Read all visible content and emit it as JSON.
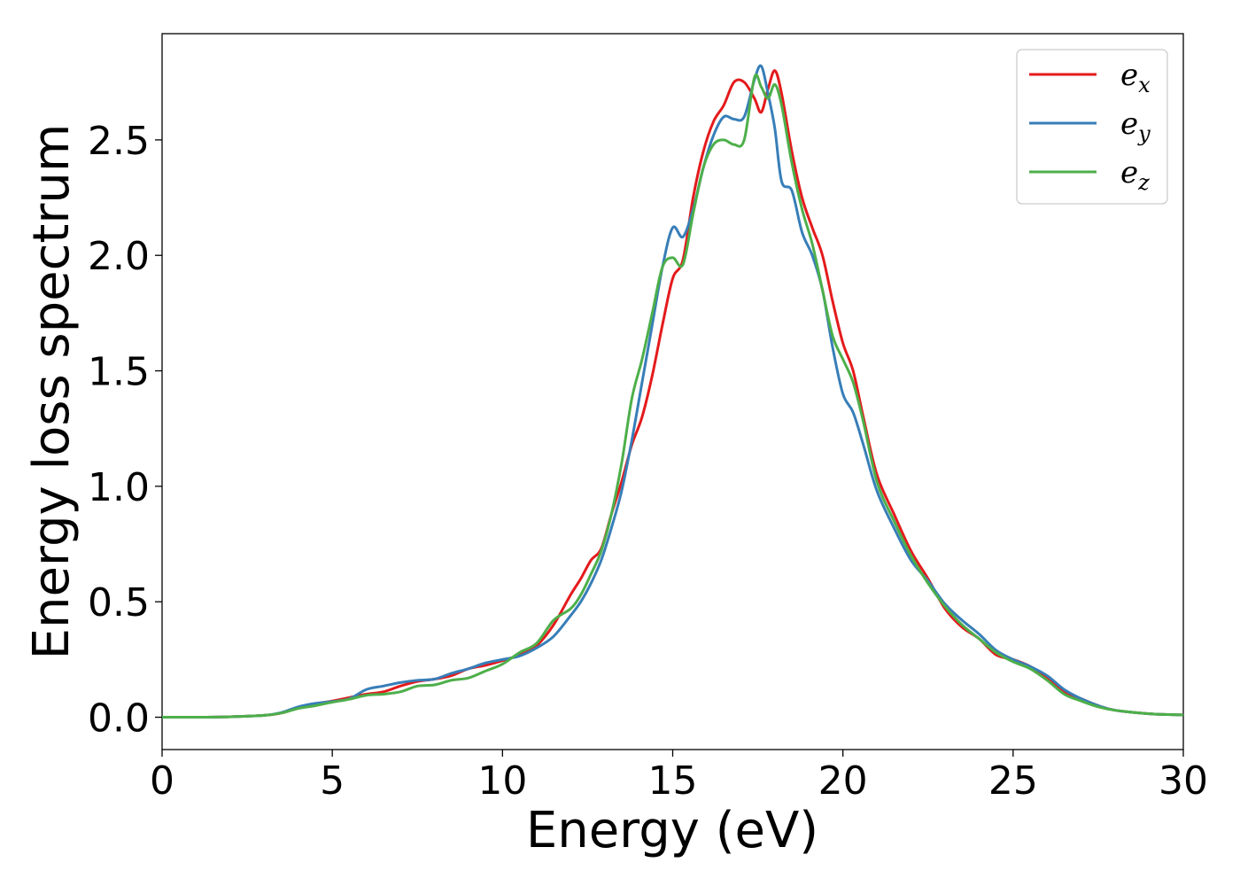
{
  "chart_data": {
    "type": "line",
    "xlabel": "Energy (eV)",
    "ylabel": "Energy loss spectrum",
    "xlim": [
      0,
      30
    ],
    "ylim": [
      -0.14,
      2.96
    ],
    "xticks": [
      0,
      5,
      10,
      15,
      20,
      25,
      30
    ],
    "xtick_labels": [
      "0",
      "5",
      "10",
      "15",
      "20",
      "25",
      "30"
    ],
    "yticks": [
      0.0,
      0.5,
      1.0,
      1.5,
      2.0,
      2.5
    ],
    "ytick_labels": [
      "0.0",
      "0.5",
      "1.0",
      "1.5",
      "2.0",
      "2.5"
    ],
    "grid": false,
    "legend_position": "upper-right",
    "series": [
      {
        "name": "e",
        "subscript": "x",
        "color": "#e41a1c",
        "x": [
          0,
          1,
          2,
          3,
          3.5,
          4,
          4.5,
          5,
          5.5,
          6,
          6.5,
          7,
          7.5,
          8,
          8.5,
          9,
          9.5,
          10,
          10.5,
          11,
          11.5,
          12,
          12.3,
          12.6,
          12.9,
          13.2,
          13.5,
          13.8,
          14.1,
          14.4,
          14.7,
          15.0,
          15.3,
          15.6,
          15.9,
          16.2,
          16.5,
          16.8,
          17.1,
          17.4,
          17.6,
          17.8,
          18.0,
          18.2,
          18.5,
          18.8,
          19.1,
          19.4,
          19.7,
          20.0,
          20.3,
          20.6,
          21.0,
          21.5,
          22.0,
          22.5,
          23.0,
          23.5,
          24.0,
          24.5,
          25.0,
          25.5,
          26.0,
          26.5,
          27.0,
          27.5,
          28.0,
          29.0,
          30.0
        ],
        "y": [
          0.0,
          0.0,
          0.002,
          0.008,
          0.018,
          0.04,
          0.058,
          0.07,
          0.085,
          0.1,
          0.11,
          0.135,
          0.155,
          0.165,
          0.18,
          0.21,
          0.225,
          0.245,
          0.27,
          0.31,
          0.4,
          0.53,
          0.6,
          0.68,
          0.73,
          0.88,
          1.02,
          1.18,
          1.3,
          1.48,
          1.7,
          1.9,
          1.98,
          2.25,
          2.45,
          2.58,
          2.65,
          2.75,
          2.75,
          2.68,
          2.62,
          2.72,
          2.8,
          2.7,
          2.45,
          2.25,
          2.12,
          2.0,
          1.8,
          1.62,
          1.5,
          1.3,
          1.05,
          0.88,
          0.72,
          0.6,
          0.47,
          0.39,
          0.34,
          0.27,
          0.25,
          0.22,
          0.17,
          0.11,
          0.08,
          0.05,
          0.03,
          0.015,
          0.01
        ]
      },
      {
        "name": "e",
        "subscript": "y",
        "color": "#377eb8",
        "x": [
          0,
          1,
          2,
          3,
          3.5,
          4,
          4.5,
          5,
          5.5,
          6,
          6.5,
          7,
          7.5,
          8,
          8.5,
          9,
          9.5,
          10,
          10.5,
          11,
          11.5,
          12,
          12.3,
          12.6,
          12.9,
          13.2,
          13.5,
          13.8,
          14.1,
          14.4,
          14.7,
          15.0,
          15.3,
          15.6,
          15.9,
          16.2,
          16.5,
          16.8,
          17.1,
          17.4,
          17.6,
          17.8,
          18.0,
          18.2,
          18.5,
          18.8,
          19.1,
          19.4,
          19.7,
          20.0,
          20.3,
          20.6,
          21.0,
          21.5,
          22.0,
          22.5,
          23.0,
          23.5,
          24.0,
          24.5,
          25.0,
          25.5,
          26.0,
          26.5,
          27.0,
          27.5,
          28.0,
          29.0,
          30.0
        ],
        "y": [
          0.0,
          0.0,
          0.002,
          0.008,
          0.02,
          0.045,
          0.06,
          0.068,
          0.08,
          0.12,
          0.135,
          0.15,
          0.16,
          0.165,
          0.19,
          0.21,
          0.235,
          0.25,
          0.265,
          0.3,
          0.35,
          0.44,
          0.5,
          0.58,
          0.68,
          0.82,
          0.98,
          1.2,
          1.45,
          1.7,
          1.95,
          2.12,
          2.08,
          2.2,
          2.38,
          2.52,
          2.6,
          2.59,
          2.6,
          2.76,
          2.82,
          2.7,
          2.55,
          2.32,
          2.28,
          2.1,
          2.0,
          1.85,
          1.6,
          1.4,
          1.32,
          1.18,
          0.98,
          0.82,
          0.68,
          0.59,
          0.49,
          0.42,
          0.36,
          0.29,
          0.25,
          0.22,
          0.18,
          0.12,
          0.08,
          0.05,
          0.03,
          0.015,
          0.01
        ]
      },
      {
        "name": "e",
        "subscript": "z",
        "color": "#4daf4a",
        "x": [
          0,
          1,
          2,
          3,
          3.5,
          4,
          4.5,
          5,
          5.5,
          6,
          6.5,
          7,
          7.5,
          8,
          8.5,
          9,
          9.5,
          10,
          10.5,
          11,
          11.5,
          12,
          12.3,
          12.6,
          12.9,
          13.2,
          13.5,
          13.8,
          14.1,
          14.4,
          14.7,
          15.0,
          15.3,
          15.6,
          15.9,
          16.2,
          16.5,
          16.8,
          17.1,
          17.4,
          17.6,
          17.8,
          18.0,
          18.2,
          18.5,
          18.8,
          19.1,
          19.4,
          19.7,
          20.0,
          20.3,
          20.6,
          21.0,
          21.5,
          22.0,
          22.5,
          23.0,
          23.5,
          24.0,
          24.5,
          25.0,
          25.5,
          26.0,
          26.5,
          27.0,
          27.5,
          28.0,
          29.0,
          30.0
        ],
        "y": [
          0.0,
          0.0,
          0.002,
          0.008,
          0.018,
          0.038,
          0.05,
          0.065,
          0.078,
          0.095,
          0.1,
          0.11,
          0.135,
          0.14,
          0.16,
          0.17,
          0.2,
          0.23,
          0.28,
          0.32,
          0.42,
          0.47,
          0.53,
          0.62,
          0.72,
          0.88,
          1.1,
          1.38,
          1.55,
          1.75,
          1.95,
          1.99,
          1.96,
          2.18,
          2.38,
          2.48,
          2.5,
          2.48,
          2.5,
          2.77,
          2.73,
          2.68,
          2.74,
          2.65,
          2.4,
          2.2,
          2.05,
          1.85,
          1.65,
          1.55,
          1.45,
          1.28,
          1.02,
          0.85,
          0.7,
          0.58,
          0.48,
          0.4,
          0.34,
          0.28,
          0.24,
          0.21,
          0.16,
          0.1,
          0.07,
          0.045,
          0.03,
          0.015,
          0.01
        ]
      }
    ]
  }
}
